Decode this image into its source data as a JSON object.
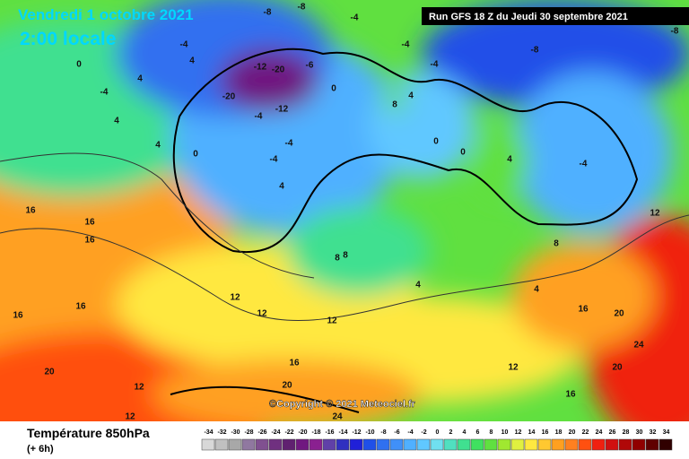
{
  "header": {
    "date": "Vendredi 1 octobre 2021",
    "time": "2:00 locale",
    "run": "Run GFS 18 Z du Jeudi 30 septembre 2021",
    "copyright": "©Copyright © 2021 Meteociel.fr"
  },
  "map": {
    "labels": [
      "-8",
      "-8",
      "-4",
      "-4",
      "4",
      "0",
      "-4",
      "4",
      "4",
      "-12",
      "-20",
      "-20",
      "-12",
      "-4",
      "-6",
      "0",
      "-4",
      "-4",
      "0",
      "4",
      "4",
      "8",
      "4",
      "0",
      "0",
      "4",
      "-4",
      "-8",
      "-8",
      "-4",
      "-4",
      "8",
      "8",
      "4",
      "4",
      "8",
      "12",
      "16",
      "16",
      "16",
      "12",
      "12",
      "12",
      "16",
      "16",
      "20",
      "12",
      "16",
      "12",
      "16",
      "20",
      "24",
      "20",
      "16",
      "20",
      "24",
      "12"
    ]
  },
  "legend": {
    "title": "Température 850hPa",
    "subtitle": "(+ 6h)",
    "values": [
      -34,
      -32,
      -30,
      -28,
      -26,
      -24,
      -22,
      -20,
      -18,
      -16,
      -14,
      -12,
      -10,
      -8,
      -6,
      -4,
      -2,
      0,
      2,
      4,
      6,
      8,
      10,
      12,
      14,
      16,
      18,
      20,
      22,
      24,
      26,
      28,
      30,
      32,
      34
    ],
    "colors": [
      "#d8d8d8",
      "#c0c0c0",
      "#a8a8a8",
      "#9078a0",
      "#805090",
      "#703080",
      "#602070",
      "#701880",
      "#8a2090",
      "#6040a8",
      "#3030c0",
      "#2020d8",
      "#2050e8",
      "#3070f0",
      "#4090f8",
      "#50b0ff",
      "#60c8ff",
      "#70e0f0",
      "#50e0c0",
      "#40e090",
      "#40e060",
      "#60e040",
      "#a0e830",
      "#e0f040",
      "#ffe840",
      "#ffc830",
      "#ffa020",
      "#ff8020",
      "#ff5010",
      "#f02010",
      "#d01010",
      "#b00808",
      "#900000",
      "#600000",
      "#300000"
    ]
  }
}
